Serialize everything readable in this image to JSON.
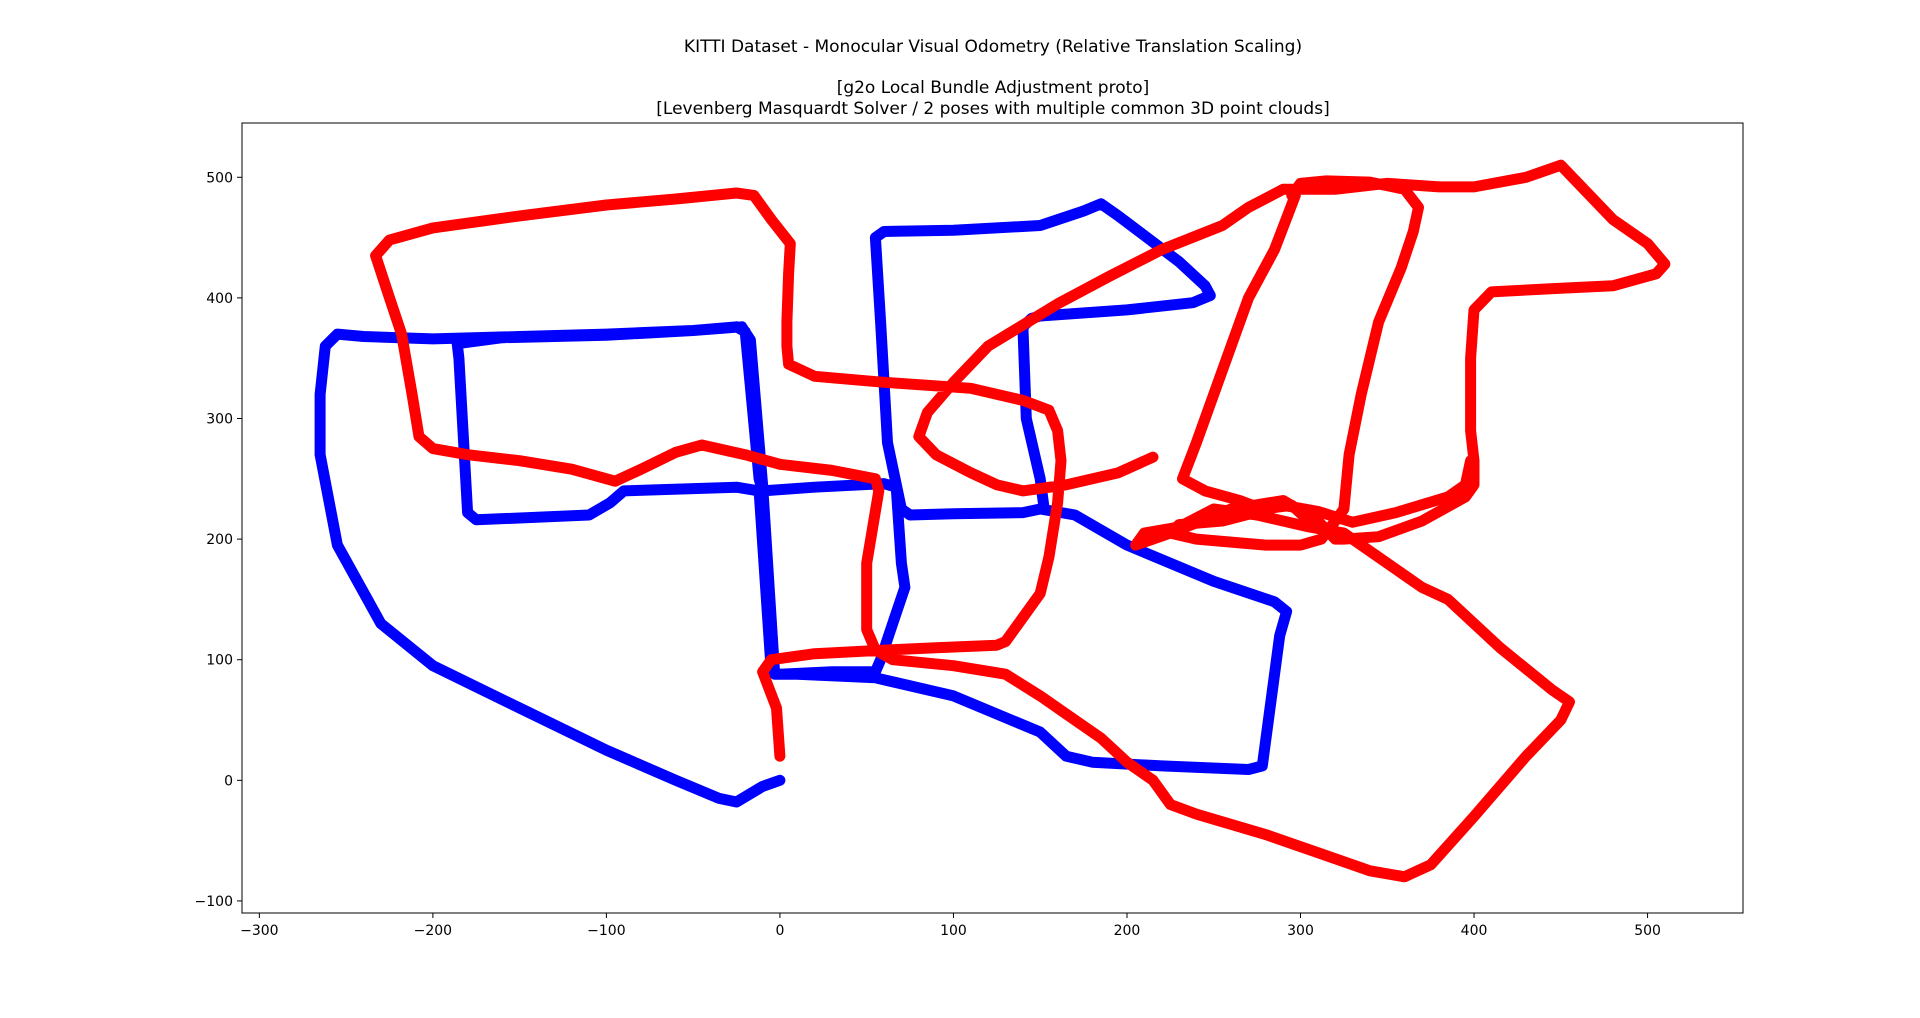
{
  "chart_data": {
    "type": "line",
    "title": "KITTI Dataset - Monocular Visual Odometry (Relative Translation Scaling)",
    "subtitle_lines": [
      "[g2o Local Bundle Adjustment proto]",
      "[Levenberg Masquardt Solver / 2 poses with multiple common 3D point clouds]"
    ],
    "xlabel": "",
    "ylabel": "",
    "xlim": [
      -310,
      555
    ],
    "ylim": [
      -110,
      545
    ],
    "xticks": [
      -300,
      -200,
      -100,
      0,
      100,
      200,
      300,
      400,
      500
    ],
    "yticks": [
      -100,
      0,
      100,
      200,
      300,
      400,
      500
    ],
    "xtick_labels": [
      "−300",
      "−200",
      "−100",
      "0",
      "100",
      "200",
      "300",
      "400",
      "500"
    ],
    "ytick_labels": [
      "−100",
      "0",
      "100",
      "200",
      "300",
      "400",
      "500"
    ],
    "grid": false,
    "legend": false,
    "series": [
      {
        "color": "#0000ff",
        "points": [
          [
            0,
            0
          ],
          [
            -10,
            -5
          ],
          [
            -25,
            -18
          ],
          [
            -35,
            -15
          ],
          [
            -60,
            0
          ],
          [
            -100,
            25
          ],
          [
            -150,
            60
          ],
          [
            -200,
            95
          ],
          [
            -230,
            130
          ],
          [
            -255,
            195
          ],
          [
            -265,
            270
          ],
          [
            -265,
            320
          ],
          [
            -262,
            360
          ],
          [
            -255,
            370
          ],
          [
            -240,
            368
          ],
          [
            -200,
            366
          ],
          [
            -150,
            368
          ],
          [
            -100,
            370
          ],
          [
            -50,
            373
          ],
          [
            -25,
            376
          ],
          [
            -20,
            372
          ],
          [
            -12,
            250
          ],
          [
            -10,
            240
          ],
          [
            20,
            243
          ],
          [
            60,
            246
          ],
          [
            67,
            243
          ],
          [
            70,
            180
          ],
          [
            72,
            160
          ],
          [
            65,
            130
          ],
          [
            58,
            100
          ],
          [
            55,
            90
          ],
          [
            30,
            90
          ],
          [
            0,
            88
          ],
          [
            -5,
            90
          ],
          [
            -12,
            240
          ],
          [
            -25,
            243
          ],
          [
            -90,
            240
          ],
          [
            -98,
            230
          ],
          [
            -110,
            220
          ],
          [
            -175,
            216
          ],
          [
            -180,
            222
          ],
          [
            -185,
            350
          ],
          [
            -186,
            362
          ],
          [
            -160,
            367
          ],
          [
            -100,
            369
          ],
          [
            -50,
            373
          ],
          [
            -22,
            376
          ],
          [
            -17,
            365
          ],
          [
            -10,
            245
          ],
          [
            -3,
            88
          ],
          [
            10,
            88
          ],
          [
            55,
            85
          ],
          [
            100,
            70
          ],
          [
            150,
            40
          ],
          [
            165,
            20
          ],
          [
            180,
            15
          ],
          [
            220,
            12
          ],
          [
            270,
            9
          ],
          [
            278,
            12
          ],
          [
            288,
            120
          ],
          [
            292,
            140
          ],
          [
            285,
            148
          ],
          [
            250,
            165
          ],
          [
            200,
            195
          ],
          [
            170,
            220
          ],
          [
            150,
            225
          ],
          [
            140,
            222
          ],
          [
            100,
            221
          ],
          [
            75,
            220
          ],
          [
            70,
            225
          ],
          [
            62,
            280
          ],
          [
            58,
            380
          ],
          [
            55,
            450
          ],
          [
            60,
            455
          ],
          [
            100,
            456
          ],
          [
            150,
            460
          ],
          [
            175,
            472
          ],
          [
            185,
            478
          ],
          [
            195,
            468
          ],
          [
            230,
            430
          ],
          [
            245,
            410
          ],
          [
            248,
            402
          ],
          [
            238,
            396
          ],
          [
            200,
            390
          ],
          [
            150,
            385
          ],
          [
            145,
            383
          ],
          [
            140,
            376
          ],
          [
            142,
            300
          ],
          [
            150,
            250
          ],
          [
            152,
            228
          ]
        ]
      },
      {
        "color": "#ff0000",
        "points": [
          [
            0,
            20
          ],
          [
            -2,
            60
          ],
          [
            -10,
            90
          ],
          [
            -5,
            100
          ],
          [
            20,
            105
          ],
          [
            60,
            108
          ],
          [
            90,
            110
          ],
          [
            125,
            112
          ],
          [
            130,
            115
          ],
          [
            140,
            135
          ],
          [
            150,
            155
          ],
          [
            155,
            185
          ],
          [
            160,
            230
          ],
          [
            162,
            265
          ],
          [
            160,
            290
          ],
          [
            155,
            307
          ],
          [
            140,
            315
          ],
          [
            110,
            325
          ],
          [
            60,
            330
          ],
          [
            20,
            335
          ],
          [
            5,
            345
          ],
          [
            4,
            360
          ],
          [
            4,
            380
          ],
          [
            5,
            420
          ],
          [
            6,
            445
          ],
          [
            -5,
            465
          ],
          [
            -15,
            485
          ],
          [
            -25,
            487
          ],
          [
            -60,
            482
          ],
          [
            -100,
            477
          ],
          [
            -150,
            468
          ],
          [
            -200,
            458
          ],
          [
            -225,
            448
          ],
          [
            -233,
            435
          ],
          [
            -225,
            400
          ],
          [
            -218,
            370
          ],
          [
            -212,
            320
          ],
          [
            -208,
            285
          ],
          [
            -200,
            275
          ],
          [
            -180,
            270
          ],
          [
            -150,
            265
          ],
          [
            -120,
            258
          ],
          [
            -95,
            248
          ],
          [
            -80,
            258
          ],
          [
            -60,
            272
          ],
          [
            -45,
            278
          ],
          [
            -20,
            270
          ],
          [
            0,
            262
          ],
          [
            30,
            257
          ],
          [
            55,
            250
          ],
          [
            57,
            240
          ],
          [
            50,
            180
          ],
          [
            50,
            125
          ],
          [
            55,
            108
          ],
          [
            65,
            100
          ],
          [
            100,
            95
          ],
          [
            130,
            88
          ],
          [
            150,
            70
          ],
          [
            165,
            55
          ],
          [
            185,
            35
          ],
          [
            200,
            15
          ],
          [
            215,
            0
          ],
          [
            225,
            -20
          ],
          [
            240,
            -28
          ],
          [
            280,
            -45
          ],
          [
            310,
            -60
          ],
          [
            340,
            -75
          ],
          [
            360,
            -80
          ],
          [
            375,
            -70
          ],
          [
            400,
            -30
          ],
          [
            430,
            20
          ],
          [
            450,
            50
          ],
          [
            455,
            65
          ],
          [
            445,
            75
          ],
          [
            415,
            110
          ],
          [
            385,
            150
          ],
          [
            370,
            160
          ],
          [
            345,
            185
          ],
          [
            325,
            205
          ],
          [
            305,
            210
          ],
          [
            275,
            220
          ],
          [
            250,
            225
          ],
          [
            230,
            210
          ],
          [
            210,
            205
          ],
          [
            205,
            195
          ],
          [
            225,
            205
          ],
          [
            260,
            225
          ],
          [
            290,
            232
          ],
          [
            310,
            215
          ],
          [
            320,
            200
          ],
          [
            325,
            200
          ],
          [
            345,
            202
          ],
          [
            370,
            215
          ],
          [
            395,
            235
          ],
          [
            400,
            245
          ],
          [
            400,
            265
          ],
          [
            398,
            290
          ],
          [
            398,
            350
          ],
          [
            400,
            390
          ],
          [
            410,
            405
          ],
          [
            450,
            408
          ],
          [
            480,
            410
          ],
          [
            505,
            420
          ],
          [
            510,
            428
          ],
          [
            500,
            445
          ],
          [
            480,
            465
          ],
          [
            460,
            495
          ],
          [
            450,
            510
          ],
          [
            430,
            500
          ],
          [
            400,
            492
          ],
          [
            380,
            492
          ],
          [
            350,
            495
          ],
          [
            320,
            490
          ],
          [
            290,
            490
          ],
          [
            270,
            475
          ],
          [
            255,
            460
          ],
          [
            220,
            440
          ],
          [
            190,
            418
          ],
          [
            160,
            395
          ],
          [
            120,
            360
          ],
          [
            100,
            330
          ],
          [
            85,
            305
          ],
          [
            80,
            285
          ],
          [
            90,
            270
          ],
          [
            110,
            255
          ],
          [
            125,
            245
          ],
          [
            140,
            240
          ],
          [
            165,
            245
          ],
          [
            195,
            255
          ],
          [
            215,
            268
          ]
        ]
      },
      {
        "color": "#ff0000",
        "points": [
          [
            295,
            485
          ],
          [
            300,
            495
          ],
          [
            315,
            497
          ],
          [
            340,
            496
          ],
          [
            360,
            490
          ],
          [
            368,
            475
          ],
          [
            365,
            455
          ],
          [
            358,
            425
          ],
          [
            345,
            380
          ],
          [
            335,
            320
          ],
          [
            328,
            270
          ],
          [
            325,
            225
          ],
          [
            320,
            215
          ],
          [
            312,
            200
          ],
          [
            300,
            195
          ],
          [
            280,
            195
          ],
          [
            240,
            200
          ],
          [
            225,
            205
          ],
          [
            230,
            212
          ],
          [
            255,
            215
          ],
          [
            290,
            228
          ],
          [
            310,
            223
          ],
          [
            330,
            214
          ],
          [
            355,
            222
          ],
          [
            385,
            235
          ],
          [
            395,
            245
          ],
          [
            398,
            265
          ]
        ]
      },
      {
        "color": "#ff0000",
        "points": [
          [
            297,
            485
          ],
          [
            285,
            440
          ],
          [
            270,
            400
          ],
          [
            255,
            340
          ],
          [
            240,
            280
          ],
          [
            232,
            250
          ],
          [
            245,
            240
          ],
          [
            265,
            232
          ],
          [
            278,
            225
          ],
          [
            295,
            228
          ],
          [
            305,
            215
          ],
          [
            315,
            205
          ]
        ]
      }
    ]
  }
}
